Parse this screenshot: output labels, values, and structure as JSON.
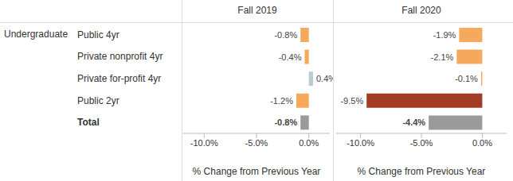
{
  "chart_data": [
    {
      "type": "bar",
      "title": "Fall 2019",
      "y_label": "Undergraduate",
      "orientation": "horizontal",
      "categories": [
        "Public 4yr",
        "Private nonprofit 4yr",
        "Private for-profit 4yr",
        "Public 2yr",
        "Total"
      ],
      "values": [
        -0.8,
        -0.4,
        0.4,
        -1.2,
        -0.8
      ],
      "value_labels": [
        "-0.8%",
        "-0.4%",
        "0.4%",
        "-1.2%",
        "-0.8%"
      ],
      "colors": [
        "#f6a85c",
        "#f6a85c",
        "#b9cbd0",
        "#f6a85c",
        "#9a9a9a"
      ],
      "data_labels": true,
      "xlim": [
        -12,
        2
      ],
      "xticks": [
        {
          "value": -10,
          "label": "-10.0%"
        },
        {
          "value": -5,
          "label": "-5.0%"
        },
        {
          "value": 0,
          "label": "0.0%"
        }
      ],
      "x_label": "% Change from Previous Year"
    },
    {
      "type": "bar",
      "title": "Fall 2020",
      "orientation": "horizontal",
      "tick_labels": "x",
      "categories": [
        "Public 4yr",
        "Private nonprofit 4yr",
        "Private for-profit 4yr",
        "Public 2yr",
        "Total"
      ],
      "values": [
        -1.9,
        -2.1,
        -0.1,
        -9.5,
        -4.4
      ],
      "value_labels": [
        "-1.9%",
        "-2.1%",
        "-0.1%",
        "-9.5%",
        "-4.4%"
      ],
      "colors": [
        "#f6a85c",
        "#f6a85c",
        "#f6a85c",
        "#a33b25",
        "#9a9a9a"
      ],
      "data_labels": true,
      "xlim": [
        -12,
        2
      ],
      "xticks": [
        {
          "value": -10,
          "label": "-10.0%"
        },
        {
          "value": -5,
          "label": "-5.0%"
        },
        {
          "value": 0,
          "label": "0.0%"
        }
      ],
      "x_label": "% Change from Previous Year"
    }
  ]
}
